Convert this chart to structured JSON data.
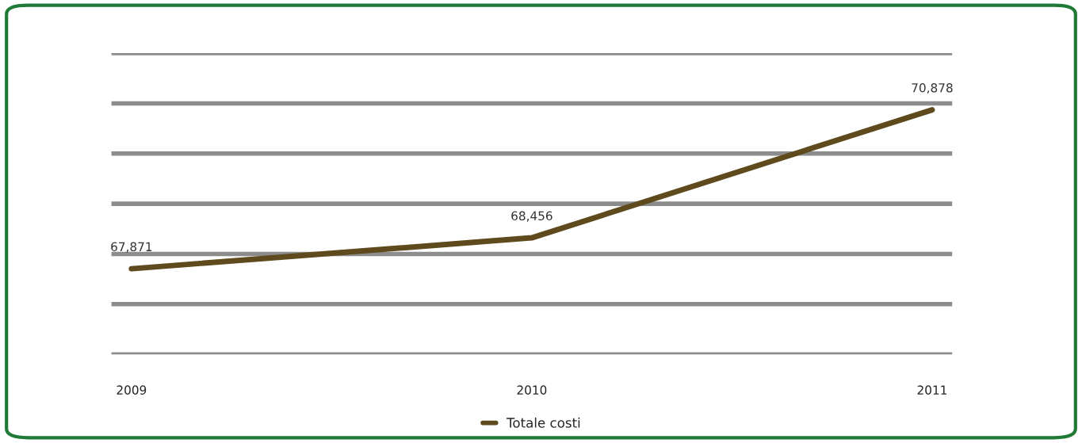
{
  "chart_data": {
    "type": "line",
    "categories": [
      "2009",
      "2010",
      "2011"
    ],
    "series": [
      {
        "name": "Totale costi",
        "color": "#5e4a1c",
        "values": [
          67871,
          68456,
          70878
        ],
        "value_labels": [
          "67,871",
          "68,456",
          "70,878"
        ]
      }
    ],
    "ylim": [
      66250,
      71950
    ],
    "yticks": [
      {
        "value": 66250,
        "label": null
      },
      {
        "value": 67200,
        "label": null
      },
      {
        "value": 68150,
        "label": null
      },
      {
        "value": 69100,
        "label": null
      },
      {
        "value": 70050,
        "label": null
      },
      {
        "value": 71000,
        "label": null
      },
      {
        "value": 71950,
        "label": null
      }
    ],
    "grid": "y",
    "legend": "bottom",
    "marker": "none",
    "line_style": "solid",
    "tick_labels": "x"
  }
}
